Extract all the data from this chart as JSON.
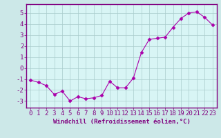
{
  "x": [
    0,
    1,
    2,
    3,
    4,
    5,
    6,
    7,
    8,
    9,
    10,
    11,
    12,
    13,
    14,
    15,
    16,
    17,
    18,
    19,
    20,
    21,
    22,
    23
  ],
  "y": [
    -1.1,
    -1.3,
    -1.6,
    -2.4,
    -2.1,
    -3.0,
    -2.6,
    -2.8,
    -2.7,
    -2.5,
    -1.2,
    -1.8,
    -1.8,
    -0.9,
    1.4,
    2.6,
    2.7,
    2.8,
    3.7,
    4.5,
    5.0,
    5.1,
    4.6,
    3.9
  ],
  "line_color": "#aa00aa",
  "marker": "D",
  "markersize": 2.5,
  "linewidth": 0.8,
  "bg_color": "#cce8e8",
  "plot_bg_color": "#d8f5f5",
  "grid_color": "#aacccc",
  "xlabel": "Windchill (Refroidissement éolien,°C)",
  "xlim": [
    -0.5,
    23.5
  ],
  "ylim": [
    -3.6,
    5.8
  ],
  "yticks": [
    -3,
    -2,
    -1,
    0,
    1,
    2,
    3,
    4,
    5
  ],
  "xticks": [
    0,
    1,
    2,
    3,
    4,
    5,
    6,
    7,
    8,
    9,
    10,
    11,
    12,
    13,
    14,
    15,
    16,
    17,
    18,
    19,
    20,
    21,
    22,
    23
  ],
  "tick_color": "#800080",
  "label_color": "#800080",
  "xlabel_fontsize": 6.5,
  "tick_fontsize": 6.5,
  "spine_color": "#800080",
  "spine_linewidth": 1.0,
  "bottom_bar_color": "#800080",
  "bottom_bar_height": 0.012
}
